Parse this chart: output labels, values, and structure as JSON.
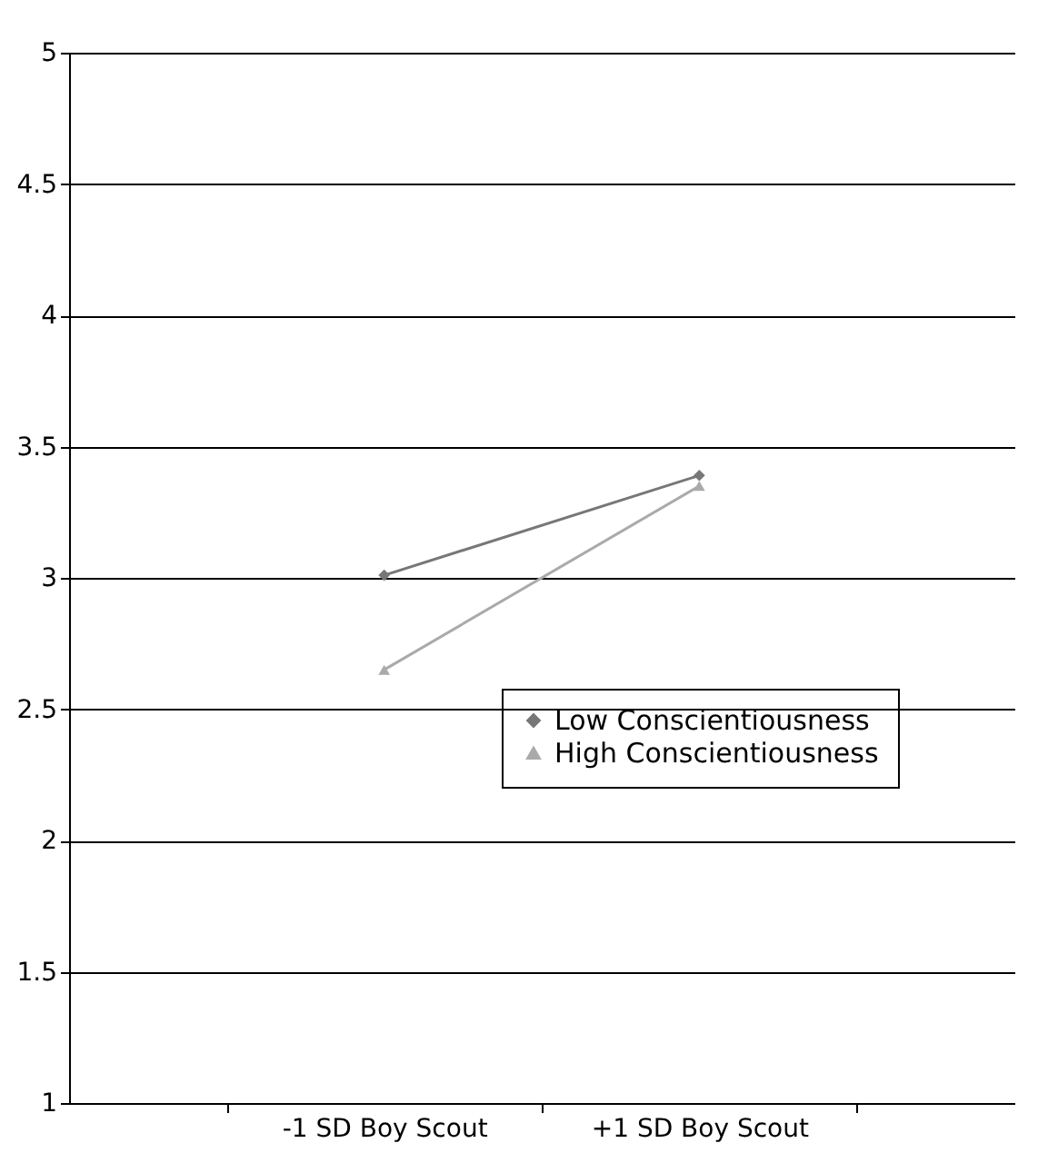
{
  "chart_data": {
    "type": "line",
    "categories": [
      "-1 SD Boy Scout",
      "+1 SD Boy Scout"
    ],
    "series": [
      {
        "name": "Low Conscientiousness",
        "color": "#777777",
        "marker": "diamond",
        "values": [
          3.01,
          3.39
        ]
      },
      {
        "name": "High Conscientiousness",
        "color": "#aaaaaa",
        "marker": "triangle",
        "values": [
          2.65,
          3.35
        ]
      }
    ],
    "ylim": [
      1,
      5
    ],
    "yticks": [
      1,
      1.5,
      2,
      2.5,
      3,
      3.5,
      4,
      4.5,
      5
    ],
    "grid": "y",
    "legend": "bottom right",
    "line_style": "solid"
  }
}
